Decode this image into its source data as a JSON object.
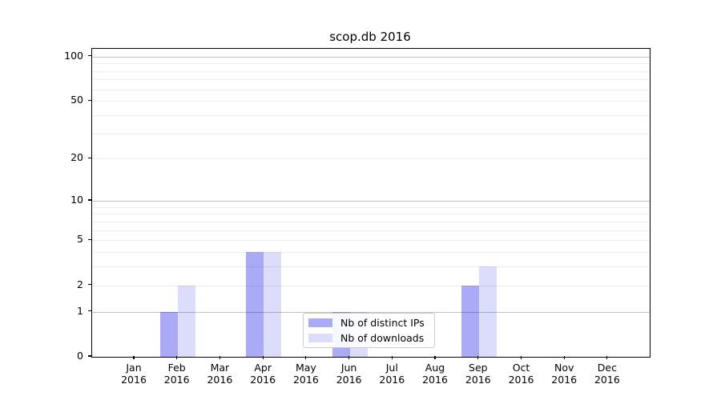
{
  "chart_data": {
    "type": "bar",
    "title": "scop.db 2016",
    "months": [
      "Jan",
      "Feb",
      "Mar",
      "Apr",
      "May",
      "Jun",
      "Jul",
      "Aug",
      "Sep",
      "Oct",
      "Nov",
      "Dec"
    ],
    "year_label": "2016",
    "series": [
      {
        "name": "Nb of distinct IPs",
        "color": "#aaaaf6",
        "values": [
          0,
          1,
          0,
          4,
          0,
          1,
          0,
          0,
          2,
          0,
          0,
          0
        ]
      },
      {
        "name": "Nb of downloads",
        "color": "#dcdcfb",
        "values": [
          0,
          2,
          0,
          4,
          0,
          1,
          0,
          0,
          3,
          0,
          0,
          0
        ]
      }
    ],
    "yscale": "log1p",
    "ylim": [
      0,
      113
    ],
    "ytick_values": [
      0,
      1,
      2,
      5,
      10,
      20,
      50,
      100
    ],
    "ytick_labels": [
      "0",
      "1",
      "2",
      "5",
      "10",
      "20",
      "50",
      "100"
    ],
    "major_grid_values": [
      1,
      10,
      100
    ],
    "minor_grid_values": [
      2,
      3,
      4,
      5,
      6,
      7,
      8,
      9,
      20,
      30,
      40,
      50,
      60,
      70,
      80,
      90
    ],
    "grid": true,
    "legend_position": "lower center"
  }
}
